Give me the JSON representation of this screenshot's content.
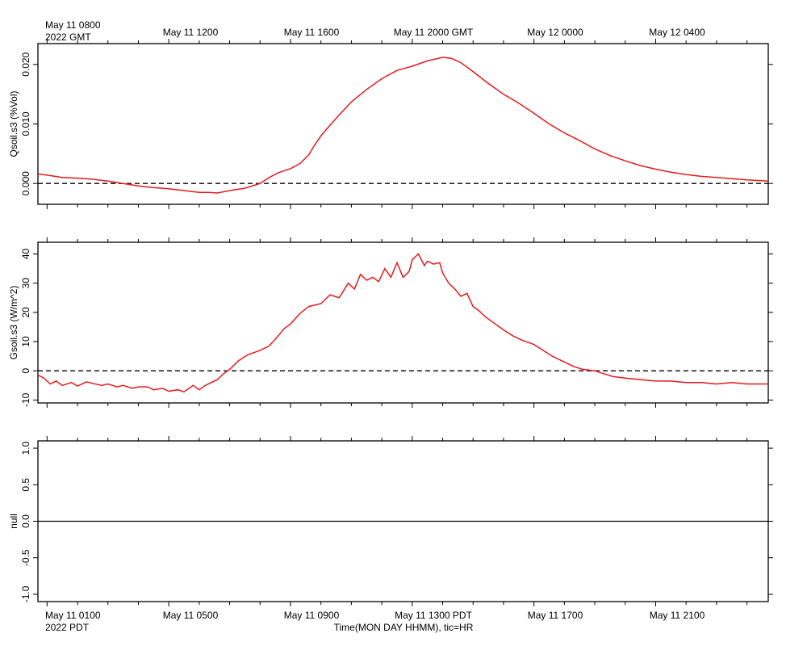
{
  "top_axis": {
    "labels": [
      "May 11 0800",
      "May 11 1200",
      "May 11 1600",
      "May 11 2000 GMT",
      "May 12 0000",
      "May 12 0400"
    ],
    "start_suffix": "2022 GMT"
  },
  "bottom_axis": {
    "labels": [
      "May 11 0100",
      "May 11 0500",
      "May 11 0900",
      "May 11 1300 PDT",
      "May 11 1700",
      "May 11 2100"
    ],
    "start_suffix": "2022 PDT",
    "xlabel": "Time(MON DAY HHMM), tic=HR"
  },
  "colors": {
    "series": "#e41a1c",
    "axes": "#000000"
  },
  "chart_data": [
    {
      "type": "line",
      "ylabel": "Qsoil.s3 (%Vol)",
      "ylim": [
        -0.0035,
        0.0235
      ],
      "yticks": [
        0.0,
        0.01,
        0.02
      ],
      "ytick_labels": [
        "0.000",
        "0.010",
        "0.020"
      ],
      "reference_line": {
        "y": 0,
        "style": "dashed"
      },
      "xlim_hours_pdt": [
        0.7,
        24.7
      ],
      "series": [
        {
          "color": "#e41a1c",
          "x": [
            0.7,
            1.0,
            1.5,
            2.0,
            2.5,
            3.0,
            3.5,
            4.0,
            4.5,
            5.0,
            5.5,
            6.0,
            6.3,
            6.6,
            7.0,
            7.5,
            8.0,
            8.3,
            8.6,
            9.0,
            9.3,
            9.6,
            9.8,
            10.0,
            10.3,
            10.6,
            11.0,
            11.5,
            12.0,
            12.5,
            13.0,
            13.5,
            14.0,
            14.3,
            14.6,
            15.0,
            15.5,
            16.0,
            16.5,
            17.0,
            17.5,
            18.0,
            18.5,
            19.0,
            19.5,
            20.0,
            20.5,
            21.0,
            21.5,
            22.0,
            22.5,
            23.0,
            23.5,
            24.0,
            24.7
          ],
          "y": [
            0.0016,
            0.0014,
            0.001,
            0.0009,
            0.0007,
            0.0004,
            0.0,
            -0.0004,
            -0.0007,
            -0.0009,
            -0.0012,
            -0.0015,
            -0.0015,
            -0.0016,
            -0.0012,
            -0.0008,
            0.0,
            0.001,
            0.0018,
            0.0025,
            0.0033,
            0.0048,
            0.0065,
            0.008,
            0.0098,
            0.0115,
            0.0137,
            0.0158,
            0.0176,
            0.019,
            0.0197,
            0.0206,
            0.0212,
            0.021,
            0.0203,
            0.0188,
            0.0168,
            0.015,
            0.0135,
            0.0118,
            0.01,
            0.0085,
            0.0072,
            0.0058,
            0.0047,
            0.0038,
            0.003,
            0.0024,
            0.0019,
            0.0015,
            0.0012,
            0.001,
            0.0008,
            0.0006,
            0.0004
          ]
        }
      ]
    },
    {
      "type": "line",
      "ylabel": "Gsoil.s3 (W/m^2)",
      "ylim": [
        -11,
        44
      ],
      "yticks": [
        -10,
        0,
        10,
        20,
        30,
        40
      ],
      "ytick_labels": [
        "-10",
        "0",
        "10",
        "20",
        "30",
        "40"
      ],
      "reference_line": {
        "y": 0,
        "style": "dashed"
      },
      "xlim_hours_pdt": [
        0.7,
        24.7
      ],
      "series": [
        {
          "color": "#e41a1c",
          "x": [
            0.7,
            0.9,
            1.1,
            1.3,
            1.5,
            1.8,
            2.0,
            2.3,
            2.5,
            2.8,
            3.0,
            3.3,
            3.5,
            3.8,
            4.0,
            4.3,
            4.5,
            4.8,
            5.0,
            5.3,
            5.5,
            5.8,
            6.0,
            6.2,
            6.4,
            6.6,
            6.8,
            7.0,
            7.3,
            7.6,
            8.0,
            8.3,
            8.6,
            8.8,
            9.0,
            9.3,
            9.6,
            10.0,
            10.3,
            10.6,
            10.9,
            11.1,
            11.3,
            11.5,
            11.7,
            11.9,
            12.1,
            12.3,
            12.5,
            12.7,
            12.9,
            13.0,
            13.2,
            13.4,
            13.5,
            13.7,
            13.9,
            14.0,
            14.2,
            14.4,
            14.6,
            14.8,
            15.0,
            15.2,
            15.4,
            15.6,
            15.8,
            16.0,
            16.3,
            16.6,
            17.0,
            17.3,
            17.6,
            18.0,
            18.3,
            18.6,
            19.0,
            19.3,
            19.6,
            20.0,
            20.5,
            21.0,
            21.5,
            22.0,
            22.5,
            23.0,
            23.5,
            24.0,
            24.7
          ],
          "y": [
            -1.5,
            -2.5,
            -4.5,
            -3.5,
            -5.0,
            -4.0,
            -5.2,
            -3.8,
            -4.3,
            -5.0,
            -4.5,
            -5.5,
            -5.0,
            -6.0,
            -5.5,
            -5.5,
            -6.5,
            -6.0,
            -7.0,
            -6.5,
            -7.2,
            -5.0,
            -6.5,
            -5.0,
            -4.0,
            -3.0,
            -1.0,
            0.5,
            3.5,
            5.5,
            7.0,
            8.5,
            12.0,
            14.5,
            16.0,
            19.5,
            22.0,
            23.0,
            26.0,
            25.0,
            30.0,
            28.0,
            33.0,
            31.0,
            32.0,
            30.5,
            35.0,
            32.0,
            37.0,
            32.0,
            34.0,
            38.0,
            40.0,
            36.0,
            37.5,
            36.5,
            37.0,
            33.5,
            30.0,
            28.0,
            25.5,
            26.5,
            22.0,
            20.5,
            18.5,
            17.0,
            15.5,
            14.0,
            12.0,
            10.5,
            9.0,
            7.0,
            5.0,
            3.0,
            1.5,
            0.5,
            0.0,
            -1.0,
            -2.0,
            -2.5,
            -3.0,
            -3.5,
            -3.5,
            -4.0,
            -4.0,
            -4.5,
            -4.0,
            -4.5,
            -4.5
          ]
        }
      ]
    },
    {
      "type": "line",
      "ylabel": "null",
      "ylim": [
        -1.1,
        1.1
      ],
      "yticks": [
        -1.0,
        -0.5,
        0.0,
        0.5,
        1.0
      ],
      "ytick_labels": [
        "-1.0",
        "-0.5",
        "0.0",
        "0.5",
        "1.0"
      ],
      "reference_line": {
        "y": 0,
        "style": "solid"
      },
      "xlim_hours_pdt": [
        0.7,
        24.7
      ],
      "series": []
    }
  ]
}
